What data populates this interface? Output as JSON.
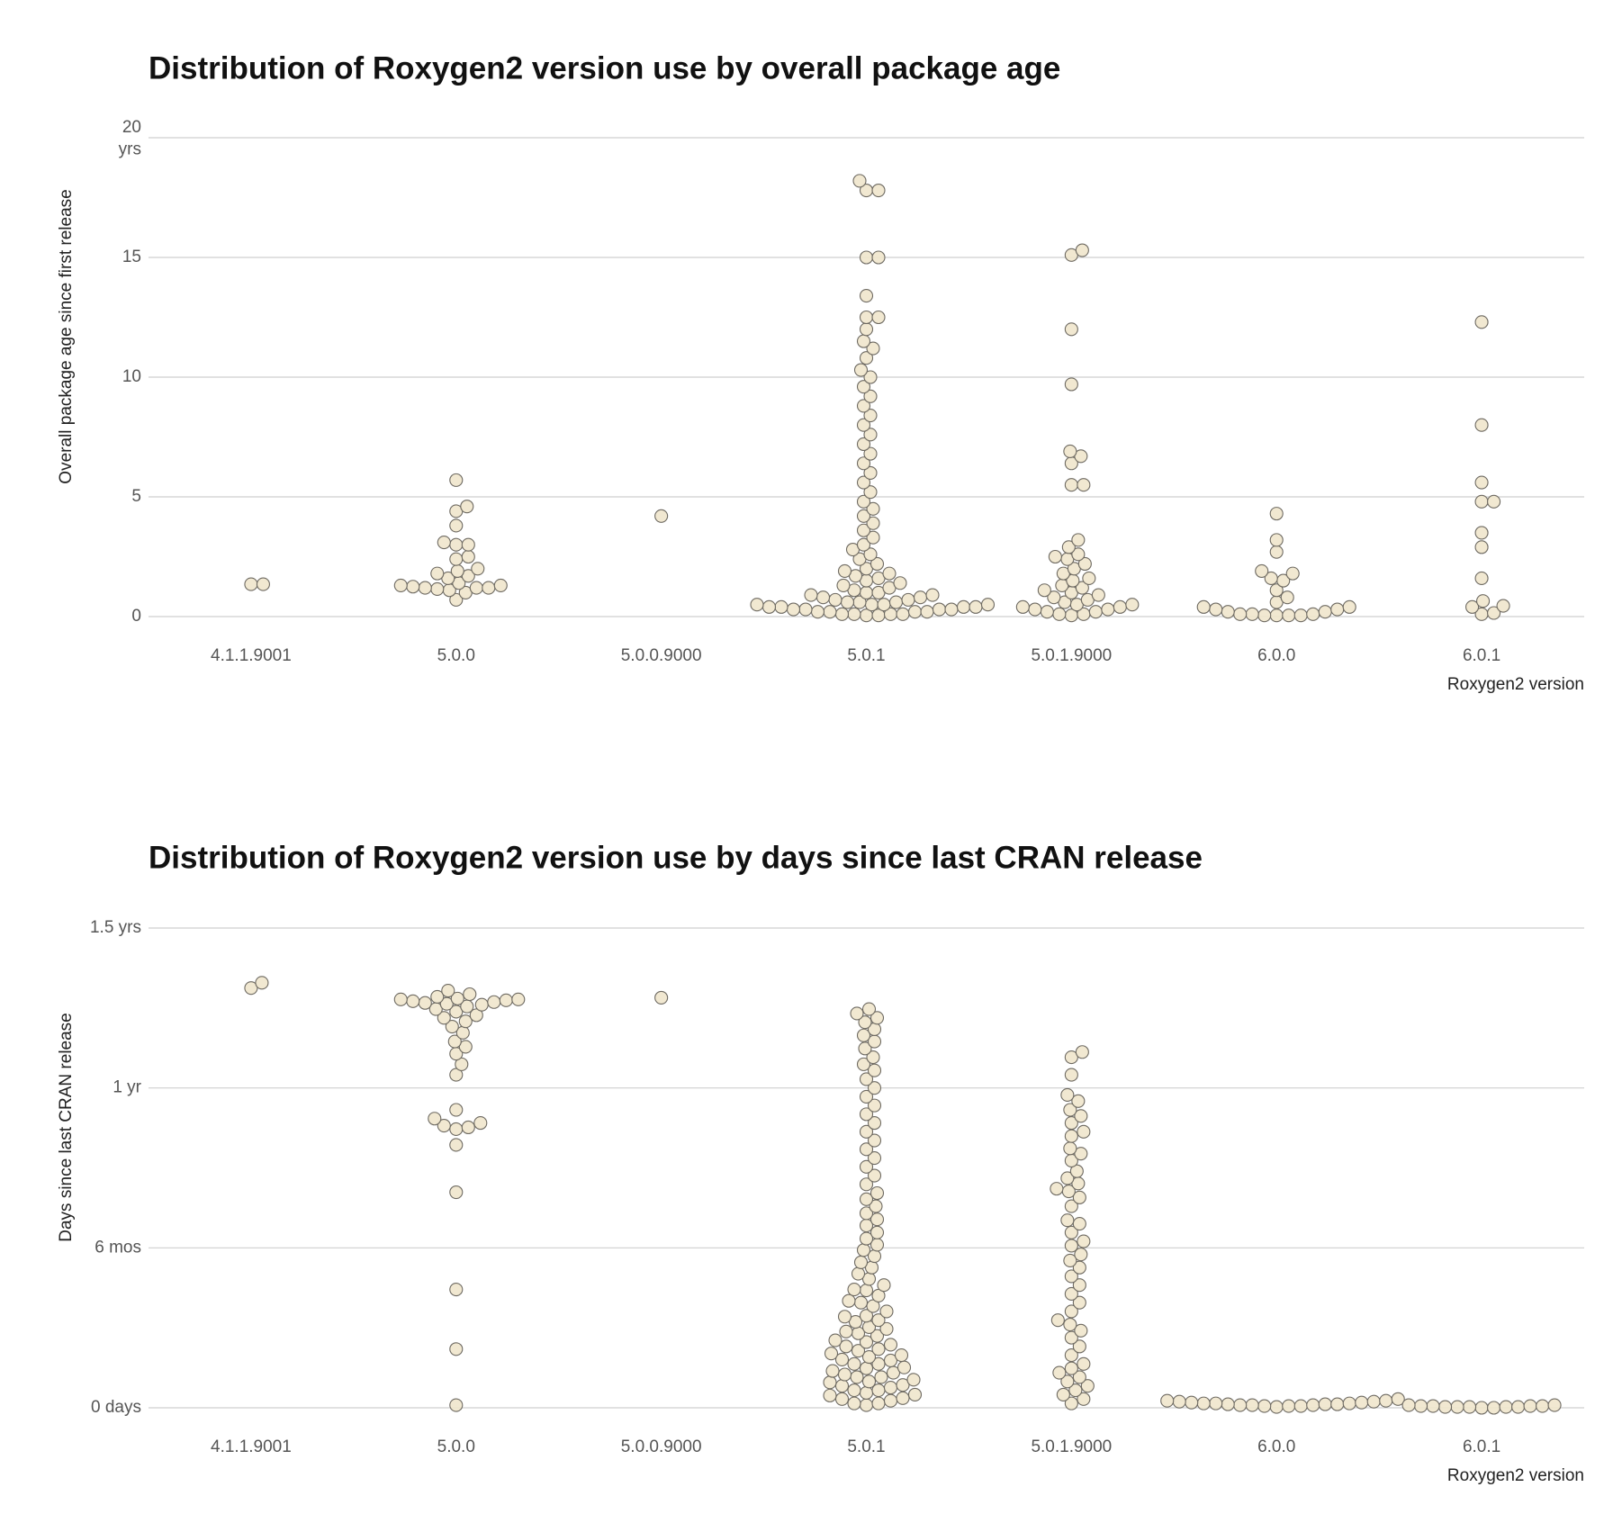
{
  "chart_data": [
    {
      "type": "beeswarm",
      "title": "Distribution of Roxygen2 version use by overall package age",
      "y_label": "Overall package age since first release",
      "x_label": "Roxygen2 version",
      "categories": [
        "4.1.1.9001",
        "5.0.0",
        "5.0.0.9000",
        "5.0.1",
        "5.0.1.9000",
        "6.0.0",
        "6.0.1"
      ],
      "values": [
        [
          1.35,
          1.35
        ],
        [
          5.7,
          4.6,
          4.4,
          3.8,
          3.0,
          3.1,
          3.0,
          2.5,
          2.4,
          2.0,
          1.9,
          1.8,
          1.7,
          1.6,
          1.4,
          1.3,
          1.3,
          1.25,
          1.2,
          1.2,
          1.2,
          1.15,
          1.1,
          1.0,
          0.7
        ],
        [
          4.2
        ],
        [
          18.2,
          17.8,
          17.8,
          15.0,
          15.0,
          13.4,
          12.5,
          12.5,
          12.0,
          11.5,
          11.2,
          10.8,
          10.3,
          10.0,
          9.6,
          9.2,
          8.8,
          8.4,
          8.0,
          7.6,
          7.2,
          6.8,
          6.4,
          6.0,
          5.6,
          5.2,
          4.8,
          4.5,
          4.2,
          3.9,
          3.6,
          3.3,
          3.0,
          2.8,
          2.6,
          2.4,
          2.2,
          2.0,
          1.9,
          1.8,
          1.7,
          1.6,
          1.5,
          1.4,
          1.3,
          1.2,
          1.1,
          1.0,
          1.0,
          0.9,
          0.9,
          0.8,
          0.8,
          0.7,
          0.7,
          0.6,
          0.6,
          0.6,
          0.5,
          0.5,
          0.5,
          0.5,
          0.4,
          0.4,
          0.4,
          0.4,
          0.3,
          0.3,
          0.3,
          0.3,
          0.2,
          0.2,
          0.2,
          0.2,
          0.1,
          0.1,
          0.1,
          0.1,
          0.05,
          0.05
        ],
        [
          15.3,
          15.1,
          12.0,
          9.7,
          6.9,
          6.7,
          6.4,
          5.5,
          5.5,
          3.2,
          2.9,
          2.6,
          2.5,
          2.4,
          2.2,
          2.0,
          1.8,
          1.6,
          1.5,
          1.3,
          1.2,
          1.1,
          1.0,
          0.9,
          0.8,
          0.7,
          0.6,
          0.5,
          0.5,
          0.4,
          0.4,
          0.3,
          0.3,
          0.2,
          0.2,
          0.1,
          0.1,
          0.05
        ],
        [
          4.3,
          3.2,
          2.7,
          1.9,
          1.8,
          1.6,
          1.5,
          1.1,
          0.8,
          0.6,
          0.4,
          0.4,
          0.3,
          0.3,
          0.2,
          0.2,
          0.1,
          0.1,
          0.1,
          0.05,
          0.05,
          0.05,
          0.05
        ],
        [
          12.3,
          8.0,
          5.6,
          4.8,
          4.8,
          3.5,
          2.9,
          1.6,
          0.65,
          0.45,
          0.4,
          0.15,
          0.1
        ]
      ],
      "ylim": [
        0,
        20
      ],
      "yticks": [
        0,
        5,
        10,
        15,
        {
          "value": 20,
          "label": "20\nyrs"
        }
      ],
      "grid": true,
      "color": "#efe6cc",
      "edge_color": "#6e6a62"
    },
    {
      "type": "beeswarm",
      "title": "Distribution of Roxygen2 version use by days since last CRAN release",
      "y_label": "Days since last CRAN release",
      "x_label": "Roxygen2 version",
      "categories": [
        "4.1.1.9001",
        "5.0.0",
        "5.0.0.9000",
        "5.0.1",
        "5.0.1.9000",
        "6.0.0",
        "6.0.1"
      ],
      "values": [
        [
          485,
          479
        ],
        [
          476,
          472,
          469,
          467,
          466,
          466,
          465,
          464,
          463,
          462,
          461,
          460,
          458,
          455,
          452,
          448,
          445,
          441,
          435,
          428,
          418,
          412,
          404,
          392,
          380,
          340,
          330,
          325,
          322,
          320,
          318,
          300,
          246,
          135,
          67,
          3
        ],
        [
          468
        ],
        [
          455,
          450,
          445,
          440,
          432,
          425,
          418,
          410,
          400,
          392,
          385,
          375,
          365,
          355,
          345,
          335,
          325,
          315,
          305,
          295,
          285,
          275,
          265,
          255,
          245,
          238,
          230,
          222,
          215,
          208,
          200,
          193,
          186,
          180,
          173,
          166,
          160,
          153,
          147,
          140,
          134,
          128,
          122,
          116,
          110,
          104,
          98,
          92,
          87,
          82,
          77,
          72,
          67,
          62,
          58,
          54,
          50,
          46,
          42,
          38,
          35,
          32,
          29,
          26,
          23,
          20,
          17,
          14,
          11,
          8,
          5,
          3,
          30,
          45,
          60,
          75,
          90,
          105,
          120,
          135,
          25,
          40,
          55,
          70,
          85,
          100,
          15,
          35,
          50,
          65,
          10,
          20,
          5
        ],
        [
          406,
          400,
          380,
          357,
          350,
          340,
          333,
          325,
          315,
          310,
          296,
          290,
          282,
          270,
          262,
          256,
          250,
          247,
          240,
          230,
          214,
          210,
          200,
          190,
          185,
          175,
          168,
          160,
          150,
          140,
          130,
          120,
          110,
          100,
          95,
          88,
          80,
          70,
          60,
          50,
          45,
          40,
          35,
          30,
          25,
          20,
          15,
          10,
          5
        ],
        [
          10,
          8,
          8,
          7,
          7,
          6,
          6,
          5,
          5,
          5,
          4,
          4,
          4,
          3,
          3,
          3,
          2,
          2,
          2,
          1
        ],
        [
          3,
          3,
          2,
          2,
          2,
          2,
          1,
          1,
          1,
          1,
          1,
          0,
          0
        ]
      ],
      "ylim": [
        0,
        547.5
      ],
      "yticks": [
        {
          "value": 0,
          "label": "0 days"
        },
        {
          "value": 182.5,
          "label": "6 mos"
        },
        {
          "value": 365,
          "label": "1 yr"
        },
        {
          "value": 547.5,
          "label": "1.5 yrs"
        }
      ],
      "grid": true,
      "color": "#efe6cc",
      "edge_color": "#6e6a62"
    }
  ]
}
